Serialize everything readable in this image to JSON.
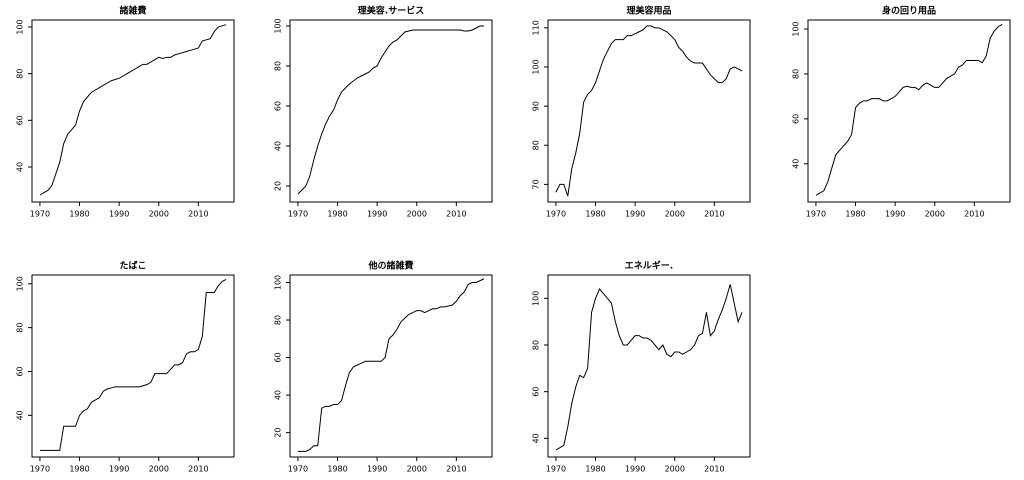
{
  "chart_data": [
    {
      "type": "line",
      "title": "諸雑費",
      "x": [
        1970,
        1971,
        1972,
        1973,
        1974,
        1975,
        1976,
        1977,
        1978,
        1979,
        1980,
        1981,
        1982,
        1983,
        1984,
        1985,
        1986,
        1987,
        1988,
        1989,
        1990,
        1991,
        1992,
        1993,
        1994,
        1995,
        1996,
        1997,
        1998,
        1999,
        2000,
        2001,
        2002,
        2003,
        2004,
        2005,
        2006,
        2007,
        2008,
        2009,
        2010,
        2011,
        2012,
        2013,
        2014,
        2015,
        2016,
        2017
      ],
      "values": [
        28,
        29,
        30,
        32,
        37,
        42,
        50,
        54,
        56,
        58,
        64,
        68,
        70,
        72,
        73,
        74,
        75,
        76,
        77,
        77.5,
        78,
        79,
        80,
        81,
        82,
        83,
        84,
        84,
        85,
        86,
        87,
        86.5,
        87,
        87,
        88,
        88.5,
        89,
        89.5,
        90,
        90.5,
        91,
        94,
        94.5,
        95,
        98,
        100,
        100.5,
        101
      ],
      "color": "#000000",
      "xlim": [
        1968,
        2019
      ],
      "xticks": [
        1970,
        1980,
        1990,
        2000,
        2010
      ],
      "ylim": [
        25,
        103
      ],
      "yticks": [
        40,
        60,
        80,
        100
      ]
    },
    {
      "type": "line",
      "title": "理美容.サービス",
      "x": [
        1970,
        1971,
        1972,
        1973,
        1974,
        1975,
        1976,
        1977,
        1978,
        1979,
        1980,
        1981,
        1982,
        1983,
        1984,
        1985,
        1986,
        1987,
        1988,
        1989,
        1990,
        1991,
        1992,
        1993,
        1994,
        1995,
        1996,
        1997,
        1998,
        1999,
        2000,
        2001,
        2002,
        2003,
        2004,
        2005,
        2006,
        2007,
        2008,
        2009,
        2010,
        2011,
        2012,
        2013,
        2014,
        2015,
        2016,
        2017
      ],
      "values": [
        16,
        18,
        20,
        25,
        33,
        40,
        46,
        51,
        55,
        58,
        63,
        67,
        69,
        71,
        72.5,
        74,
        75,
        76,
        77,
        79,
        80,
        84,
        87,
        90,
        92,
        93,
        95,
        97,
        97.5,
        98,
        98,
        98,
        98,
        98,
        98,
        98,
        98,
        98,
        98,
        98,
        98,
        98,
        97.5,
        97.5,
        98,
        99,
        100,
        100
      ],
      "color": "#000000",
      "xlim": [
        1968,
        2019
      ],
      "xticks": [
        1970,
        1980,
        1990,
        2000,
        2010
      ],
      "ylim": [
        12,
        103
      ],
      "yticks": [
        20,
        40,
        60,
        80,
        100
      ]
    },
    {
      "type": "line",
      "title": "理美容用品",
      "x": [
        1970,
        1971,
        1972,
        1973,
        1974,
        1975,
        1976,
        1977,
        1978,
        1979,
        1980,
        1981,
        1982,
        1983,
        1984,
        1985,
        1986,
        1987,
        1988,
        1989,
        1990,
        1991,
        1992,
        1993,
        1994,
        1995,
        1996,
        1997,
        1998,
        1999,
        2000,
        2001,
        2002,
        2003,
        2004,
        2005,
        2006,
        2007,
        2008,
        2009,
        2010,
        2011,
        2012,
        2013,
        2014,
        2015,
        2016,
        2017
      ],
      "values": [
        68,
        70,
        70,
        67,
        74,
        78,
        83,
        91,
        93,
        94,
        96,
        99,
        102,
        104,
        106,
        107,
        107,
        107,
        108,
        108,
        108.5,
        109,
        109.5,
        110.5,
        110.5,
        110,
        110,
        109.5,
        109,
        108,
        107,
        105,
        104,
        102.5,
        101.5,
        101,
        101,
        101,
        99.5,
        98,
        97,
        96,
        96,
        97,
        99.5,
        100,
        99.5,
        99
      ],
      "color": "#000000",
      "xlim": [
        1968,
        2019
      ],
      "xticks": [
        1970,
        1980,
        1990,
        2000,
        2010
      ],
      "ylim": [
        65.5,
        112
      ],
      "yticks": [
        70,
        80,
        90,
        100,
        110
      ]
    },
    {
      "type": "line",
      "title": "身の回り用品",
      "x": [
        1970,
        1971,
        1972,
        1973,
        1974,
        1975,
        1976,
        1977,
        1978,
        1979,
        1980,
        1981,
        1982,
        1983,
        1984,
        1985,
        1986,
        1987,
        1988,
        1989,
        1990,
        1991,
        1992,
        1993,
        1994,
        1995,
        1996,
        1997,
        1998,
        1999,
        2000,
        2001,
        2002,
        2003,
        2004,
        2005,
        2006,
        2007,
        2008,
        2009,
        2010,
        2011,
        2012,
        2013,
        2014,
        2015,
        2016,
        2017
      ],
      "values": [
        26,
        27,
        28,
        32,
        38,
        44,
        46,
        48,
        50,
        53,
        65,
        67,
        68,
        68,
        69,
        69,
        69,
        68,
        68,
        69,
        70,
        72,
        74,
        74.5,
        74,
        74,
        73,
        75,
        76,
        75,
        74,
        74,
        76,
        78,
        79,
        80,
        83,
        84,
        86,
        86,
        86,
        86,
        85,
        88,
        96,
        99,
        101,
        102
      ],
      "color": "#000000",
      "xlim": [
        1968,
        2019
      ],
      "xticks": [
        1970,
        1980,
        1990,
        2000,
        2010
      ],
      "ylim": [
        23,
        104
      ],
      "yticks": [
        40,
        60,
        80,
        100
      ]
    },
    {
      "type": "line",
      "title": "たばこ",
      "x": [
        1970,
        1971,
        1972,
        1973,
        1974,
        1975,
        1976,
        1977,
        1978,
        1979,
        1980,
        1981,
        1982,
        1983,
        1984,
        1985,
        1986,
        1987,
        1988,
        1989,
        1990,
        1991,
        1992,
        1993,
        1994,
        1995,
        1996,
        1997,
        1998,
        1999,
        2000,
        2001,
        2002,
        2003,
        2004,
        2005,
        2006,
        2007,
        2008,
        2009,
        2010,
        2011,
        2012,
        2013,
        2014,
        2015,
        2016,
        2017
      ],
      "values": [
        24,
        24,
        24,
        24,
        24,
        24,
        35,
        35,
        35,
        35,
        40,
        42,
        43,
        46,
        47,
        48,
        51,
        52,
        52.5,
        53,
        53,
        53,
        53,
        53,
        53,
        53,
        53.5,
        54,
        55,
        59,
        59,
        59,
        59,
        61,
        63,
        63,
        64,
        68,
        69,
        69,
        70,
        76,
        96,
        96,
        96,
        99,
        101,
        102
      ],
      "color": "#000000",
      "xlim": [
        1968,
        2019
      ],
      "xticks": [
        1970,
        1980,
        1990,
        2000,
        2010
      ],
      "ylim": [
        21,
        104
      ],
      "yticks": [
        40,
        60,
        80,
        100
      ]
    },
    {
      "type": "line",
      "title": "他の諸雑費",
      "x": [
        1970,
        1971,
        1972,
        1973,
        1974,
        1975,
        1976,
        1977,
        1978,
        1979,
        1980,
        1981,
        1982,
        1983,
        1984,
        1985,
        1986,
        1987,
        1988,
        1989,
        1990,
        1991,
        1992,
        1993,
        1994,
        1995,
        1996,
        1997,
        1998,
        1999,
        2000,
        2001,
        2002,
        2003,
        2004,
        2005,
        2006,
        2007,
        2008,
        2009,
        2010,
        2011,
        2012,
        2013,
        2014,
        2015,
        2016,
        2017
      ],
      "values": [
        10,
        10,
        10,
        11,
        13,
        13,
        33,
        34,
        34,
        35,
        35,
        37,
        45,
        52,
        55,
        56,
        57,
        58,
        58,
        58,
        58,
        58,
        60,
        70,
        72,
        75,
        79,
        81,
        83,
        84,
        85,
        85,
        84,
        85,
        86,
        86,
        87,
        87,
        87.5,
        88,
        90,
        93,
        95,
        99,
        100,
        100,
        101,
        102
      ],
      "color": "#000000",
      "xlim": [
        1968,
        2019
      ],
      "xticks": [
        1970,
        1980,
        1990,
        2000,
        2010
      ],
      "ylim": [
        7,
        104
      ],
      "yticks": [
        20,
        40,
        60,
        80,
        100
      ]
    },
    {
      "type": "line",
      "title": "エネルギー.",
      "x": [
        1970,
        1971,
        1972,
        1973,
        1974,
        1975,
        1976,
        1977,
        1978,
        1979,
        1980,
        1981,
        1982,
        1983,
        1984,
        1985,
        1986,
        1987,
        1988,
        1989,
        1990,
        1991,
        1992,
        1993,
        1994,
        1995,
        1996,
        1997,
        1998,
        1999,
        2000,
        2001,
        2002,
        2003,
        2004,
        2005,
        2006,
        2007,
        2008,
        2009,
        2010,
        2011,
        2012,
        2013,
        2014,
        2015,
        2016,
        2017
      ],
      "values": [
        35,
        36,
        37,
        45,
        55,
        62,
        67,
        66,
        70,
        94,
        100,
        104,
        102,
        100,
        98,
        90,
        84,
        80,
        80,
        82,
        84,
        84,
        83,
        83,
        82,
        80,
        78,
        80,
        76,
        75,
        77,
        77,
        76,
        77,
        78,
        80,
        84,
        85,
        94,
        84,
        86,
        91,
        95,
        100,
        106,
        98,
        90,
        94
      ],
      "color": "#000000",
      "xlim": [
        1968,
        2019
      ],
      "xticks": [
        1970,
        1980,
        1990,
        2000,
        2010
      ],
      "ylim": [
        32,
        110
      ],
      "yticks": [
        40,
        60,
        80,
        100
      ]
    }
  ]
}
